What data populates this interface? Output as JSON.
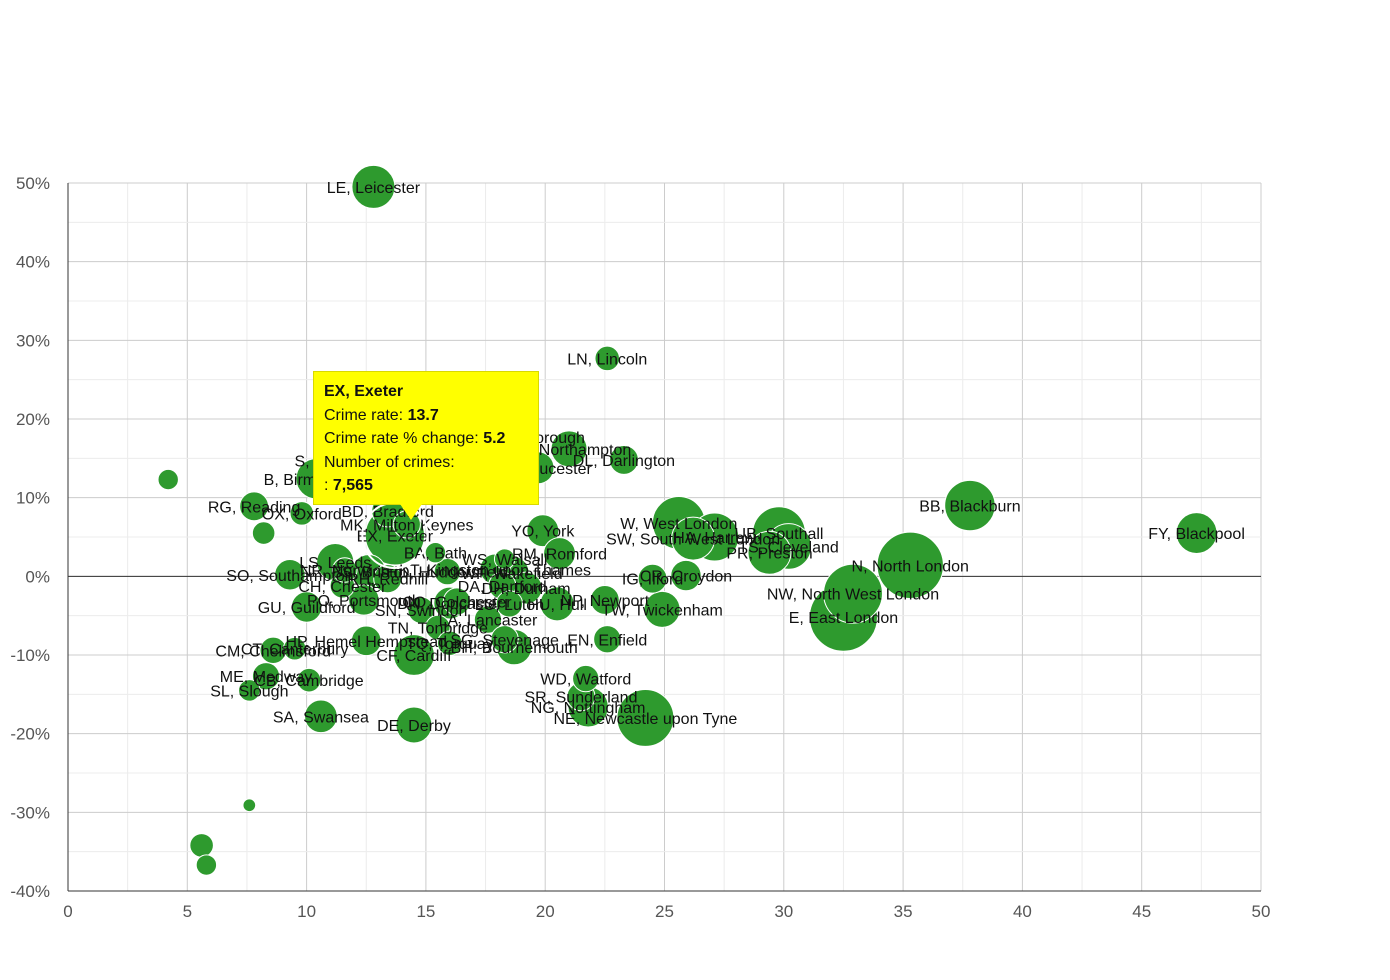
{
  "chart_data": {
    "type": "bubble",
    "title": "",
    "xlabel": "",
    "ylabel": "",
    "xlim": [
      0,
      50
    ],
    "ylim": [
      -40,
      50
    ],
    "x_ticks": [
      "0",
      "5",
      "10",
      "15",
      "20",
      "25",
      "30",
      "35",
      "40",
      "45",
      "50"
    ],
    "y_ticks": [
      "-40%",
      "-30%",
      "-20%",
      "-10%",
      "0%",
      "10%",
      "20%",
      "30%",
      "40%",
      "50%"
    ],
    "bubble_color": "#2e9a2e",
    "points": [
      {
        "label": "LE, Leicester",
        "x": 12.8,
        "y": 49.5,
        "size": 4000
      },
      {
        "label": "LN, Lincoln",
        "x": 22.6,
        "y": 27.7,
        "size": 1300
      },
      {
        "label": "FY, Blackpool",
        "x": 47.3,
        "y": 5.5,
        "size": 3600
      },
      {
        "label": "BB, Blackburn",
        "x": 37.8,
        "y": 9.0,
        "size": 5500
      },
      {
        "label": "N, North London",
        "x": 35.3,
        "y": 1.4,
        "size": 9500
      },
      {
        "label": "NW, North West London",
        "x": 32.9,
        "y": -2.2,
        "size": 7500
      },
      {
        "label": "E, East London",
        "x": 32.5,
        "y": -5.2,
        "size": 10000
      },
      {
        "label": "PR, Preston",
        "x": 29.4,
        "y": 3.0,
        "size": 4000
      },
      {
        "label": "UB, Southall",
        "x": 29.8,
        "y": 5.5,
        "size": 6000
      },
      {
        "label": "TS, Cleveland",
        "x": 30.2,
        "y": 3.8,
        "size": 4500
      },
      {
        "label": "W, West London",
        "x": 25.6,
        "y": 6.8,
        "size": 6000
      },
      {
        "label": "HA, Harrow",
        "x": 27.1,
        "y": 5.0,
        "size": 5000
      },
      {
        "label": "SW, South West London",
        "x": 26.2,
        "y": 4.8,
        "size": 4000
      },
      {
        "label": "CR, Croydon",
        "x": 25.9,
        "y": 0.1,
        "size": 2000
      },
      {
        "label": "IG, Ilford",
        "x": 24.5,
        "y": -0.3,
        "size": 1800
      },
      {
        "label": "TW, Twickenham",
        "x": 24.9,
        "y": -4.2,
        "size": 2800
      },
      {
        "label": "EN, Enfield",
        "x": 22.6,
        "y": -8.0,
        "size": 1600
      },
      {
        "label": "NP, Newport",
        "x": 22.5,
        "y": -3.0,
        "size": 1800
      },
      {
        "label": "HU, Hull",
        "x": 20.5,
        "y": -3.5,
        "size": 2500
      },
      {
        "label": "WD, Watford",
        "x": 21.7,
        "y": -13.0,
        "size": 1500
      },
      {
        "label": "SR, Sunderland",
        "x": 21.5,
        "y": -15.3,
        "size": 1700
      },
      {
        "label": "NG, Nottingham",
        "x": 21.8,
        "y": -16.6,
        "size": 3500
      },
      {
        "label": "NE, Newcastle upon Tyne",
        "x": 24.2,
        "y": -18.0,
        "size": 7000
      },
      {
        "label": "DL, Darlington",
        "x": 23.3,
        "y": 14.8,
        "size": 1800
      },
      {
        "label": "NN, Northampton",
        "x": 21.0,
        "y": 16.2,
        "size": 2800
      },
      {
        "label": "GL, Gloucester",
        "x": 19.7,
        "y": 13.8,
        "size": 2200
      },
      {
        "label": "PE, Peterborough",
        "x": 19.0,
        "y": 17.7,
        "size": 2500
      },
      {
        "label": "YO, York",
        "x": 19.9,
        "y": 5.8,
        "size": 2200
      },
      {
        "label": "RM, Romford",
        "x": 20.6,
        "y": 2.9,
        "size": 2200
      },
      {
        "label": "DH, Durham",
        "x": 19.2,
        "y": -1.5,
        "size": 2200
      },
      {
        "label": "WF, Wakefield",
        "x": 18.6,
        "y": 0.4,
        "size": 2600
      },
      {
        "label": "DA, Dartford",
        "x": 18.2,
        "y": -1.2,
        "size": 1600
      },
      {
        "label": "LU, Luton",
        "x": 18.5,
        "y": -3.5,
        "size": 1500
      },
      {
        "label": "LA, Lancaster",
        "x": 17.6,
        "y": -5.5,
        "size": 1600
      },
      {
        "label": "CO, Colchester",
        "x": 16.3,
        "y": -3.2,
        "size": 1600
      },
      {
        "label": "BH, Bournemouth",
        "x": 18.7,
        "y": -9.0,
        "size": 2700
      },
      {
        "label": "SG, Stevenage",
        "x": 18.3,
        "y": -8.0,
        "size": 1600
      },
      {
        "label": "WS, Walsall",
        "x": 18.3,
        "y": 2.2,
        "size": 900
      },
      {
        "label": "KT, Kingston upon Thames",
        "x": 17.9,
        "y": 0.9,
        "size": 2000
      },
      {
        "label": "DN, Doncaster",
        "x": 16.0,
        "y": -3.4,
        "size": 2200
      },
      {
        "label": "HD, Huddersfield",
        "x": 15.9,
        "y": 0.6,
        "size": 1500
      },
      {
        "label": "BA, Bath",
        "x": 15.4,
        "y": 3.0,
        "size": 900
      },
      {
        "label": "SN, Swindon",
        "x": 14.8,
        "y": -4.3,
        "size": 1500
      },
      {
        "label": "TN, Tonbridge",
        "x": 15.5,
        "y": -6.5,
        "size": 1300
      },
      {
        "label": "TQ, Torquay",
        "x": 16.0,
        "y": -8.5,
        "size": 1300
      },
      {
        "label": "HP, Hemel Hempstead",
        "x": 12.5,
        "y": -8.2,
        "size": 1900
      },
      {
        "label": "CF, Cardiff",
        "x": 14.5,
        "y": -10.0,
        "size": 3600
      },
      {
        "label": "DE, Derby",
        "x": 14.5,
        "y": -18.9,
        "size": 2800
      },
      {
        "label": "SA, Swansea",
        "x": 10.6,
        "y": -17.8,
        "size": 2300
      },
      {
        "label": "CM, Chelmsford",
        "x": 8.6,
        "y": -9.4,
        "size": 1500
      },
      {
        "label": "CB, Cambridge",
        "x": 10.1,
        "y": -13.2,
        "size": 1200
      },
      {
        "label": "ME, Medway",
        "x": 8.3,
        "y": -12.7,
        "size": 1600
      },
      {
        "label": "SL, Slough",
        "x": 7.6,
        "y": -14.5,
        "size": 1000
      },
      {
        "label": "CT, Canterbury",
        "x": 9.5,
        "y": -9.2,
        "size": 1100
      },
      {
        "label": "GU, Guildford",
        "x": 10.0,
        "y": -3.9,
        "size": 2000
      },
      {
        "label": "PO, Portsmouth",
        "x": 12.4,
        "y": -3.0,
        "size": 2000
      },
      {
        "label": "CH, Chester",
        "x": 11.5,
        "y": -1.2,
        "size": 1300
      },
      {
        "label": "SO, Southampton",
        "x": 9.3,
        "y": 0.2,
        "size": 2000
      },
      {
        "label": "NR, Norwich",
        "x": 11.6,
        "y": 0.8,
        "size": 1300
      },
      {
        "label": "RH, Redhill",
        "x": 13.4,
        "y": -0.3,
        "size": 1700
      },
      {
        "label": "LS, Leeds",
        "x": 11.2,
        "y": 1.8,
        "size": 3000
      },
      {
        "label": "BS, Bristol",
        "x": 12.6,
        "y": 0.6,
        "size": 2500
      },
      {
        "label": "EX, Exeter",
        "x": 13.7,
        "y": 5.2,
        "size": 7565
      },
      {
        "label": "MK, Milton Keynes",
        "x": 14.2,
        "y": 6.6,
        "size": 1600
      },
      {
        "label": "BD, Bradford",
        "x": 13.4,
        "y": 8.3,
        "size": 2200
      },
      {
        "label": "RG, Reading",
        "x": 7.8,
        "y": 8.9,
        "size": 1800
      },
      {
        "label": "B, Birmingham",
        "x": 10.4,
        "y": 12.4,
        "size": 3500
      },
      {
        "label": "S, Sheffield",
        "x": 11.2,
        "y": 14.7,
        "size": 1500
      },
      {
        "label": "OX, Oxford",
        "x": 9.8,
        "y": 8.0,
        "size": 1200
      },
      {
        "label": "",
        "x": 4.2,
        "y": 12.3,
        "size": 900
      },
      {
        "label": "",
        "x": 8.2,
        "y": 5.5,
        "size": 1100
      },
      {
        "label": "",
        "x": 7.6,
        "y": -29.1,
        "size": 350
      },
      {
        "label": "",
        "x": 5.6,
        "y": -34.2,
        "size": 1200
      },
      {
        "label": "",
        "x": 5.8,
        "y": -36.7,
        "size": 900
      }
    ],
    "tooltip": {
      "title": "EX, Exeter",
      "rate_label": "Crime rate:",
      "rate_value": "13.7",
      "change_label": "Crime rate % change:",
      "change_value": "5.2",
      "count_label": "Number of crimes:",
      "count_prefix": ":",
      "count_value": "7,565"
    }
  }
}
